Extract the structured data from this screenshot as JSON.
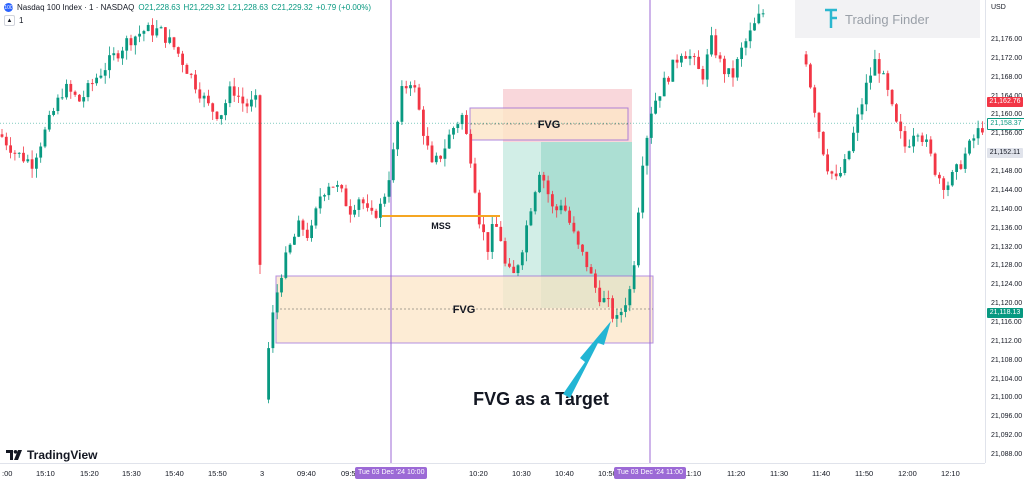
{
  "header": {
    "symbol": "Nasdaq 100 Index · 1 · NASDAQ",
    "open": "O21,228.63",
    "high": "H21,229.32",
    "low": "L21,228.63",
    "close": "C21,229.32",
    "change": "+0.79 (+0.00%)",
    "indicator_count": "1",
    "logo_text": "100"
  },
  "brand": {
    "name": "Trading Finder"
  },
  "footer_brand": {
    "name": "TradingView"
  },
  "price_axis": {
    "currency": "USD",
    "ticks": [
      "21,176.00",
      "21,172.00",
      "21,168.00",
      "21,164.00",
      "21,160.00",
      "21,156.00",
      "21,152.00",
      "21,148.00",
      "21,144.00",
      "21,140.00",
      "21,136.00",
      "21,132.00",
      "21,128.00",
      "21,124.00",
      "21,120.00",
      "21,116.00",
      "21,112.00",
      "21,108.00",
      "21,104.00",
      "21,100.00",
      "21,096.00",
      "21,092.00",
      "21,088.00"
    ],
    "badges": [
      {
        "text": "21,162.76",
        "bg": "#f23645",
        "fg": "#ffffff",
        "price": 21162.76
      },
      {
        "text": "21,158.37",
        "bg": "#ffffff",
        "fg": "#089981",
        "border": "#089981",
        "price": 21158.37
      },
      {
        "text": "21,152.11",
        "bg": "#e0e3eb",
        "fg": "#131722",
        "price": 21152.11
      },
      {
        "text": "21,118.13",
        "bg": "#089981",
        "fg": "#ffffff",
        "price": 21118.13
      }
    ]
  },
  "time_axis": {
    "ticks": [
      ":00",
      "15:10",
      "15:20",
      "15:30",
      "15:40",
      "15:50",
      "3",
      "09:40",
      "09:50",
      "10:20",
      "10:30",
      "10:40",
      "10:50",
      "11:10",
      "11:20",
      "11:30",
      "11:40",
      "11:50",
      "12:00",
      "12:10"
    ],
    "markers": [
      "Tue 03 Dec '24   10:00",
      "Tue 03 Dec '24   11:00"
    ]
  },
  "annotations": {
    "fvg_upper": "FVG",
    "fvg_lower": "FVG",
    "mss": "MSS",
    "callout": "FVG as a Target"
  },
  "colors": {
    "bull": "#089981",
    "bear": "#f23645",
    "vline": "#9c6ad6",
    "mss": "#f5a623",
    "fvg_fill": "#fde6c8",
    "fvg_border": "#9c6ad6",
    "arrow": "#22b5d4"
  }
}
